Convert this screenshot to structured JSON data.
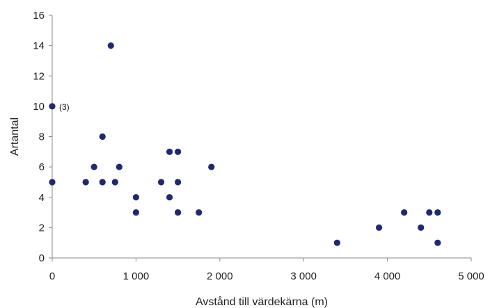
{
  "chart_data": {
    "type": "scatter",
    "title": "",
    "xlabel": "Avstånd till värdekärna (m)",
    "ylabel": "Artantal",
    "xlim": [
      0,
      5000
    ],
    "ylim": [
      0,
      16
    ],
    "x_ticks": [
      0,
      1000,
      2000,
      3000,
      4000,
      5000
    ],
    "x_tick_labels": [
      "0",
      "1 000",
      "2 000",
      "3 000",
      "4 000",
      "5 000"
    ],
    "y_ticks": [
      0,
      2,
      4,
      6,
      8,
      10,
      12,
      14,
      16
    ],
    "y_tick_labels": [
      "0",
      "2",
      "4",
      "6",
      "8",
      "10",
      "12",
      "14",
      "16"
    ],
    "grid": false,
    "marker_color": "#1f2a6e",
    "series": [
      {
        "points": [
          {
            "x": 0,
            "y": 10
          },
          {
            "x": 0,
            "y": 5
          },
          {
            "x": 400,
            "y": 5
          },
          {
            "x": 500,
            "y": 6
          },
          {
            "x": 600,
            "y": 8
          },
          {
            "x": 600,
            "y": 5
          },
          {
            "x": 700,
            "y": 14
          },
          {
            "x": 750,
            "y": 5
          },
          {
            "x": 800,
            "y": 6
          },
          {
            "x": 1000,
            "y": 4
          },
          {
            "x": 1000,
            "y": 3
          },
          {
            "x": 1300,
            "y": 5
          },
          {
            "x": 1400,
            "y": 7
          },
          {
            "x": 1400,
            "y": 4
          },
          {
            "x": 1500,
            "y": 7
          },
          {
            "x": 1500,
            "y": 5
          },
          {
            "x": 1500,
            "y": 3
          },
          {
            "x": 1750,
            "y": 3
          },
          {
            "x": 1900,
            "y": 6
          },
          {
            "x": 3400,
            "y": 1
          },
          {
            "x": 3900,
            "y": 2
          },
          {
            "x": 4200,
            "y": 3
          },
          {
            "x": 4400,
            "y": 2
          },
          {
            "x": 4500,
            "y": 3
          },
          {
            "x": 4600,
            "y": 3
          },
          {
            "x": 4600,
            "y": 1
          }
        ]
      }
    ],
    "annotations": [
      {
        "text": "(3)",
        "x": 0,
        "y": 10
      }
    ]
  }
}
